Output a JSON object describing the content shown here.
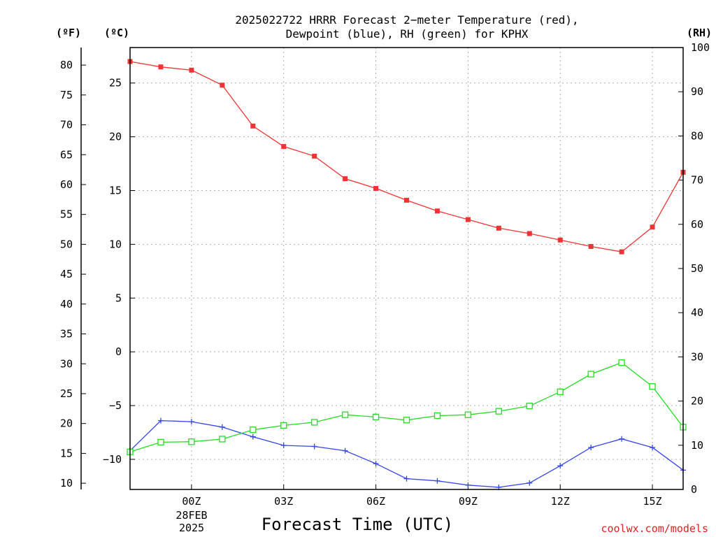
{
  "header": {
    "title_line1": "2025022722 HRRR Forecast 2−meter Temperature (red),",
    "title_line2": "Dewpoint (blue), RH (green) for KPHX"
  },
  "axes": {
    "f_unit": "(ºF)",
    "c_unit": "(ºC)",
    "rh_unit": "(RH)",
    "xlabel": "Forecast Time (UTC)",
    "date_line1": "28FEB",
    "date_line2": "2025"
  },
  "credit": "coolwx.com/models",
  "chart_data": {
    "type": "line",
    "title": "2025022722 HRRR Forecast 2−meter Temperature (red), Dewpoint (blue), RH (green) for KPHX",
    "xlabel": "Forecast Time (UTC)",
    "x_hours": [
      -2,
      -1,
      0,
      1,
      2,
      3,
      4,
      5,
      6,
      7,
      8,
      9,
      10,
      11,
      12,
      13,
      14,
      15,
      16
    ],
    "x_range": [
      -2,
      16
    ],
    "x_ticks": [
      {
        "hour": 0,
        "label": "00Z"
      },
      {
        "hour": 3,
        "label": "03Z"
      },
      {
        "hour": 6,
        "label": "06Z"
      },
      {
        "hour": 9,
        "label": "09Z"
      },
      {
        "hour": 12,
        "label": "12Z"
      },
      {
        "hour": 15,
        "label": "15Z"
      }
    ],
    "celsius_axis": {
      "range": [
        -12.8,
        28.3
      ],
      "ticks": [
        25,
        20,
        15,
        10,
        5,
        0,
        -5,
        -10
      ],
      "tick_labels": [
        "25",
        "20",
        "15",
        "10",
        "5",
        "0",
        "−5",
        "−10"
      ]
    },
    "fahrenheit_axis": {
      "range": [
        8.96,
        82.94
      ],
      "ticks": [
        80,
        75,
        70,
        65,
        60,
        55,
        50,
        45,
        40,
        35,
        30,
        25,
        20,
        15,
        10
      ]
    },
    "rh_axis": {
      "range": [
        0,
        100
      ],
      "ticks": [
        100,
        90,
        80,
        70,
        60,
        50,
        40,
        30,
        20,
        10,
        0
      ]
    },
    "grid": true,
    "series": [
      {
        "name": "2-meter Temperature",
        "axis": "celsius",
        "color": "#ee3333",
        "marker": "filled-square",
        "values": [
          27.0,
          26.5,
          26.2,
          24.8,
          21.0,
          19.1,
          18.2,
          16.1,
          15.2,
          14.1,
          13.1,
          12.3,
          11.5,
          11.0,
          10.4,
          9.8,
          9.3,
          11.6,
          16.7
        ]
      },
      {
        "name": "Dewpoint",
        "axis": "celsius",
        "color": "#3344ee",
        "marker": "plus",
        "values": [
          -9.2,
          -6.4,
          -6.5,
          -7.0,
          -7.9,
          -8.7,
          -8.8,
          -9.2,
          -10.4,
          -11.8,
          -12.0,
          -12.4,
          -12.6,
          -12.2,
          -10.6,
          -8.9,
          -8.1,
          -8.9,
          -11.0
        ]
      },
      {
        "name": "RH",
        "axis": "rh",
        "color": "#22dd22",
        "marker": "open-square",
        "values": [
          8.5,
          10.7,
          10.8,
          11.4,
          13.5,
          14.5,
          15.2,
          16.9,
          16.4,
          15.7,
          16.7,
          16.9,
          17.7,
          18.9,
          22.1,
          26.1,
          28.7,
          23.3,
          14.1
        ]
      }
    ]
  }
}
